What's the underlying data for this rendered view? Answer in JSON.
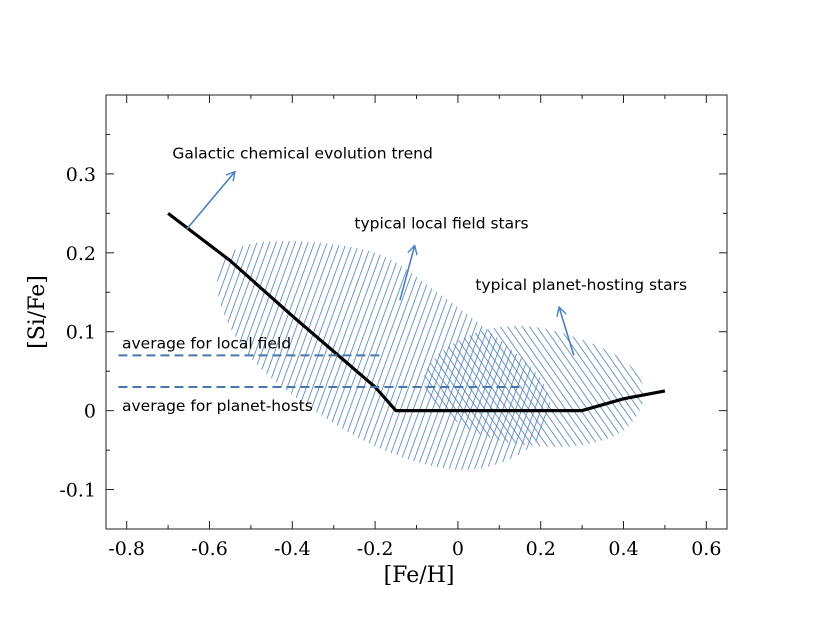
{
  "chart_data": {
    "type": "line",
    "xlabel": "[Fe/H]",
    "ylabel": "[Si/Fe]",
    "xlim": [
      -0.85,
      0.65
    ],
    "ylim": [
      -0.15,
      0.4
    ],
    "xticks": [
      -0.8,
      -0.6,
      -0.4,
      -0.2,
      0,
      0.2,
      0.4,
      0.6
    ],
    "xtick_labels": [
      "-0.8",
      "-0.6",
      "-0.4",
      "-0.2",
      "0",
      "0.2",
      "0.4",
      "0.6"
    ],
    "yticks": [
      -0.1,
      0,
      0.1,
      0.2,
      0.3
    ],
    "ytick_labels": [
      "-0.1",
      "0",
      "0.1",
      "0.2",
      "0.3"
    ],
    "trend": {
      "name": "Galactic chemical evolution trend",
      "x": [
        -0.7,
        -0.55,
        -0.4,
        -0.3,
        -0.2,
        -0.15,
        -0.1,
        0.0,
        0.1,
        0.2,
        0.3,
        0.4,
        0.5
      ],
      "y": [
        0.25,
        0.19,
        0.12,
        0.075,
        0.03,
        0.0,
        0.0,
        0.0,
        0.0,
        0.0,
        0.0,
        0.015,
        0.025
      ]
    },
    "averages": [
      {
        "name": "average for local field",
        "y": 0.07,
        "x_range": [
          -0.82,
          -0.18
        ]
      },
      {
        "name": "average for planet-hosts",
        "y": 0.03,
        "x_range": [
          -0.82,
          0.16
        ]
      }
    ],
    "regions": [
      {
        "name": "typical local field stars",
        "outline_x": [
          -0.42,
          -0.2,
          -0.05,
          0.1,
          0.2,
          0.22,
          0.15,
          0.0,
          -0.2,
          -0.4,
          -0.52,
          -0.58,
          -0.55
        ],
        "outline_y": [
          0.215,
          0.2,
          0.15,
          0.09,
          0.04,
          -0.01,
          -0.055,
          -0.075,
          -0.045,
          0.02,
          0.08,
          0.15,
          0.2
        ]
      },
      {
        "name": "typical planet-hosting stars",
        "outline_x": [
          0.05,
          0.17,
          0.3,
          0.41,
          0.45,
          0.4,
          0.28,
          0.12,
          0.0,
          -0.08,
          -0.05
        ],
        "outline_y": [
          0.1,
          0.107,
          0.09,
          0.06,
          0.02,
          -0.025,
          -0.045,
          -0.04,
          -0.015,
          0.03,
          0.07
        ]
      }
    ],
    "annotations": [
      {
        "text": "Galactic chemical evolution trend",
        "arrow_from": [
          -0.655,
          0.23
        ],
        "arrow_to": [
          -0.54,
          0.302
        ]
      },
      {
        "text": "typical local field stars",
        "arrow_from": [
          -0.14,
          0.14
        ],
        "arrow_to": [
          -0.105,
          0.208
        ]
      },
      {
        "text": "typical planet-hosting stars",
        "arrow_from": [
          0.28,
          0.07
        ],
        "arrow_to": [
          0.245,
          0.13
        ]
      }
    ],
    "colors": {
      "hatch": "#4f7fb3",
      "dashed": "#4a77ab",
      "arrow": "#4a80bf",
      "trend": "#000000"
    }
  }
}
